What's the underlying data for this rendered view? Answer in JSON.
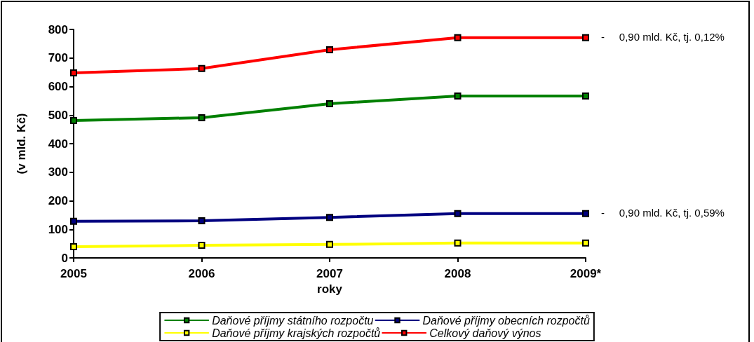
{
  "chart_data": {
    "type": "line",
    "xlabel": "roky",
    "ylabel": "(v mld. Kč)",
    "categories": [
      "2005",
      "2006",
      "2007",
      "2008",
      "2009*"
    ],
    "series": [
      {
        "name": "Daňové příjmy státního rozpočtu",
        "color": "#008000",
        "values": [
          481,
          491,
          540,
          567,
          567
        ]
      },
      {
        "name": "Daňové příjmy obecních rozpočtů",
        "color": "#000080",
        "values": [
          128,
          130,
          142,
          155,
          155
        ]
      },
      {
        "name": "Daňové příjmy krajských rozpočtů",
        "color": "#ffff00",
        "values": [
          39,
          44,
          47,
          52,
          52
        ]
      },
      {
        "name": "Celkový daňový výnos",
        "color": "#ff0000",
        "values": [
          648,
          663,
          729,
          771,
          771
        ]
      }
    ],
    "ylim": [
      0,
      800
    ],
    "yticks": [
      0,
      100,
      200,
      300,
      400,
      500,
      600,
      700,
      800
    ],
    "annotations": [
      {
        "text": "-     0,90 mld. Kč, tj. 0,12%",
        "x": "2009*",
        "y": 771
      },
      {
        "text": "-     0,90 mld. Kč, tj. 0,59%",
        "x": "2009*",
        "y": 155
      }
    ],
    "grid": false,
    "legend": "bottom",
    "marker": "square",
    "line_style": "solid"
  }
}
